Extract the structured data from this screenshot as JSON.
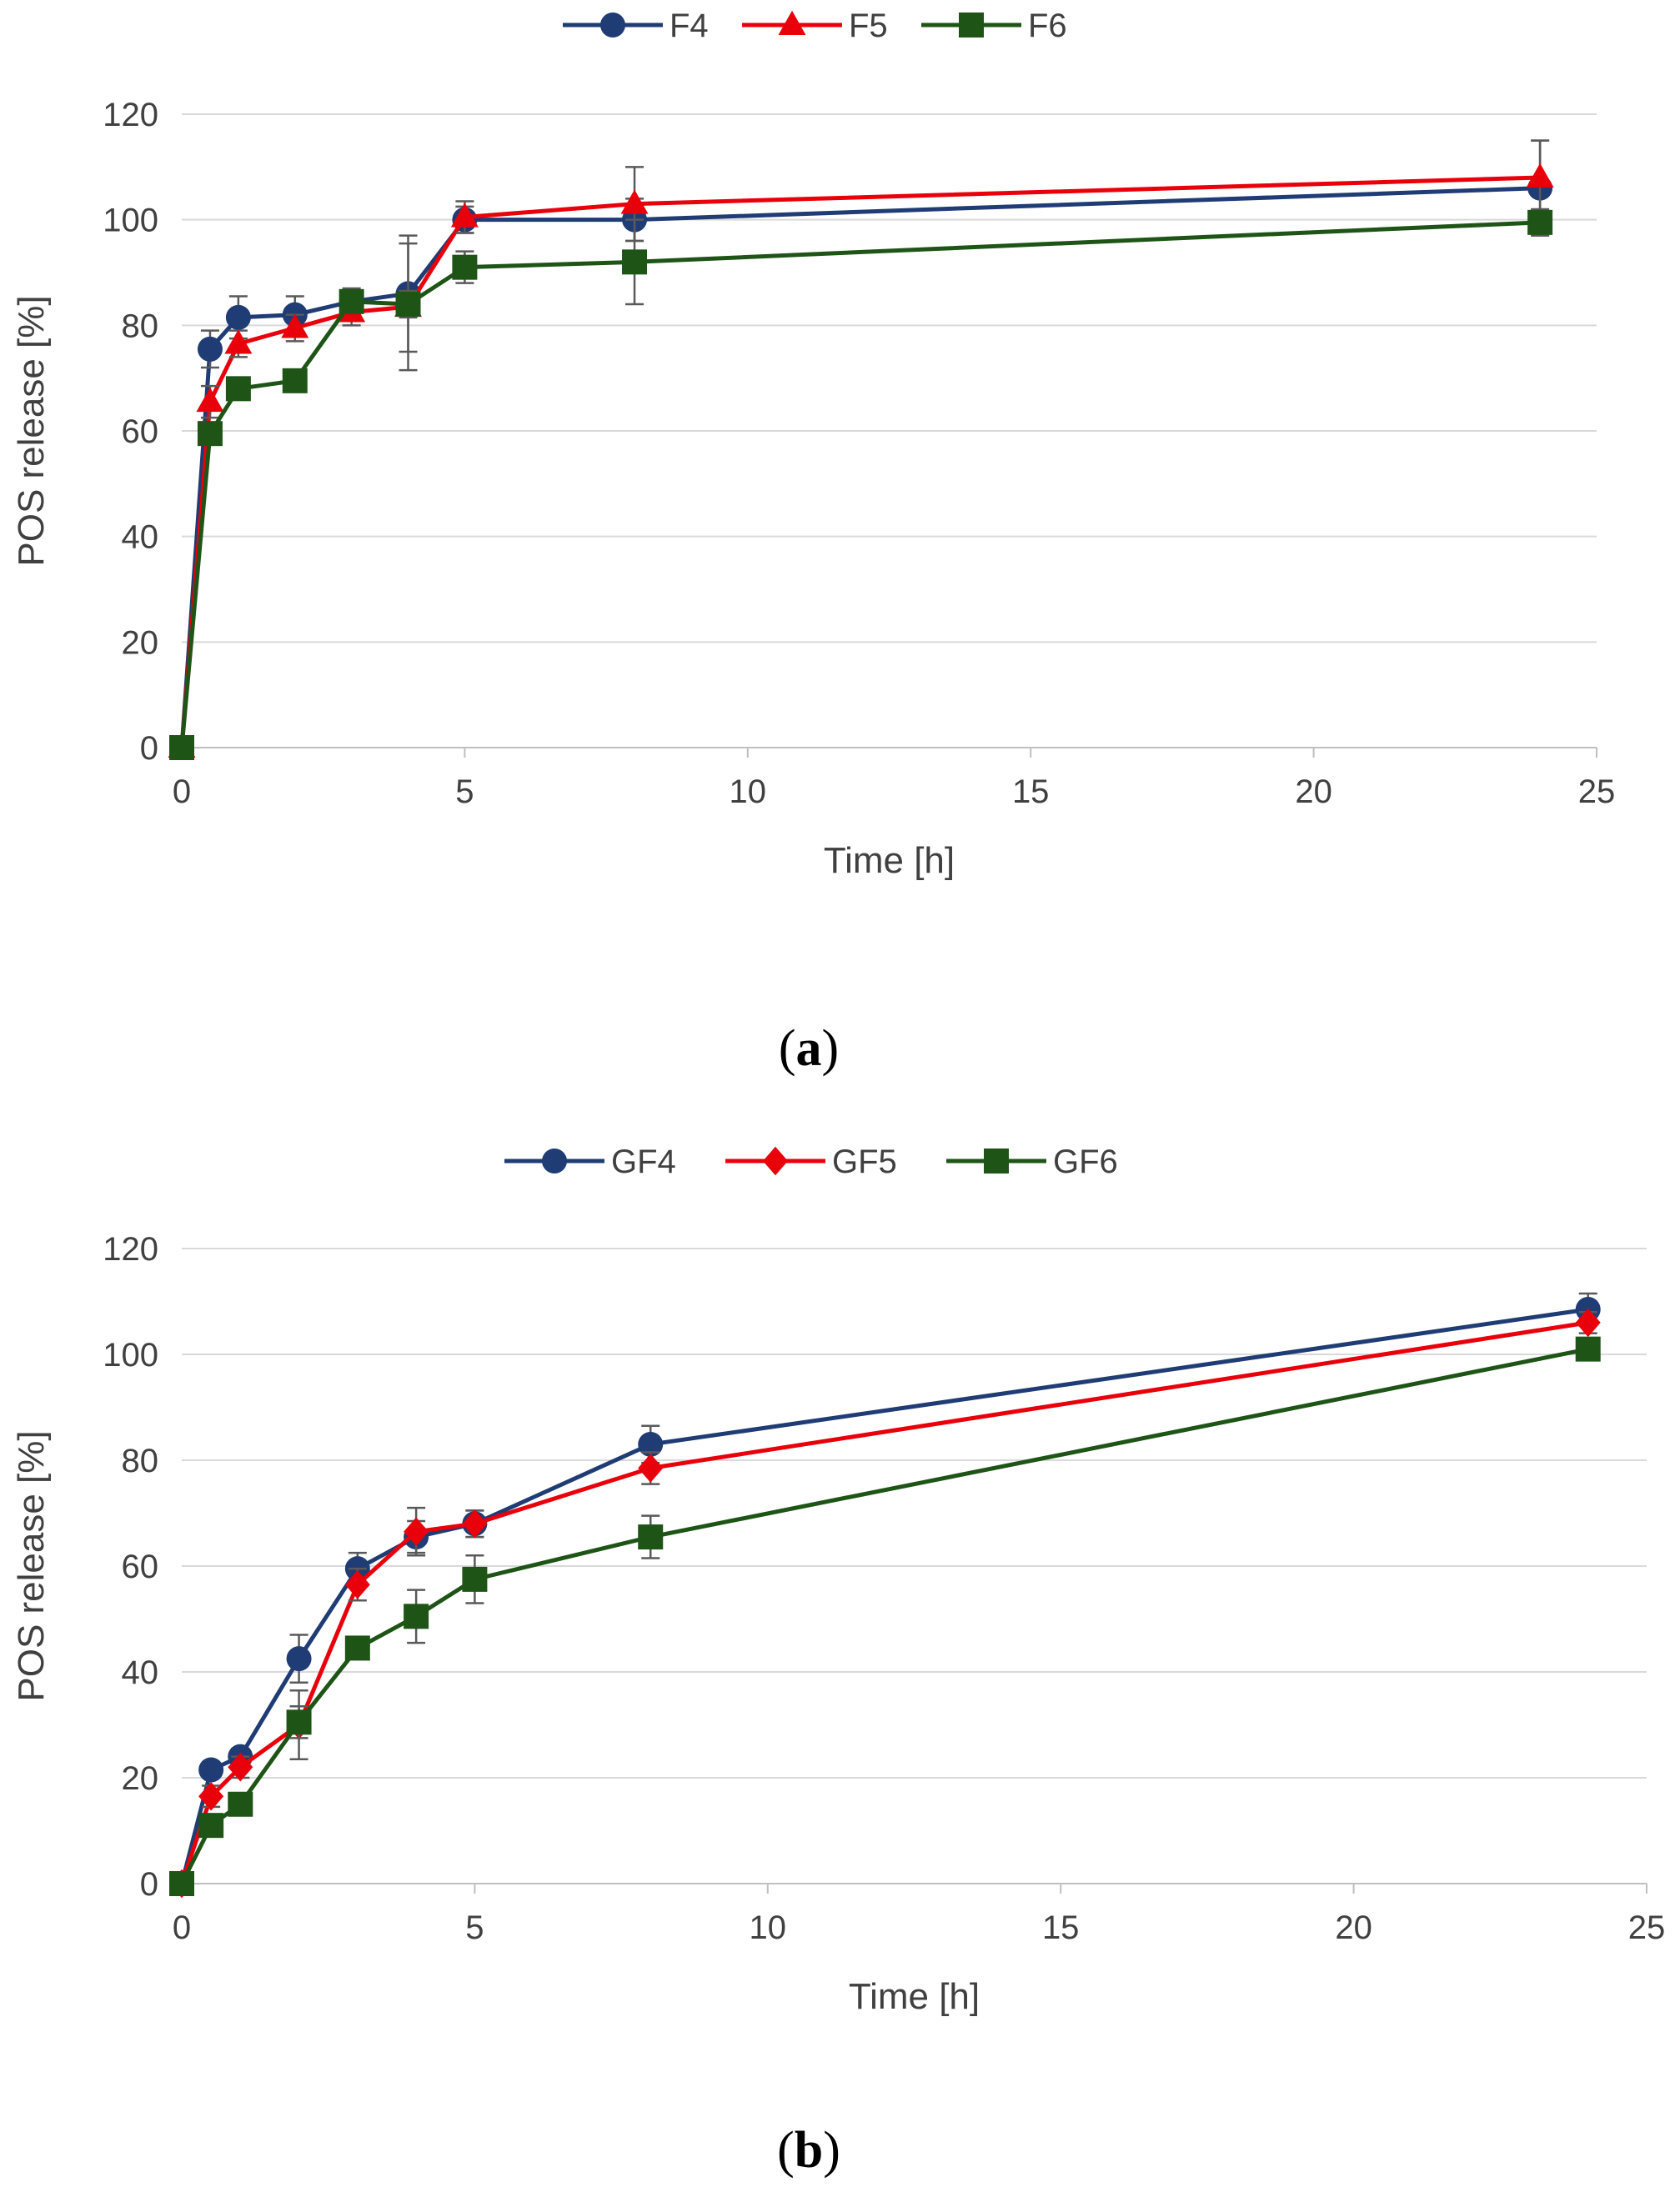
{
  "chart_data": [
    {
      "type": "line",
      "panel_label": "a",
      "title": "",
      "xlabel": "Time [h]",
      "ylabel": "POS release [%]",
      "xlim": [
        0,
        25
      ],
      "ylim": [
        0,
        120
      ],
      "xticks": [
        0,
        5,
        10,
        15,
        20,
        25
      ],
      "yticks": [
        0,
        20,
        40,
        60,
        80,
        100,
        120
      ],
      "grid": "horizontal",
      "legend_position": "top-center",
      "x": [
        0,
        0.5,
        1,
        2,
        3,
        4,
        5,
        8,
        24
      ],
      "series": [
        {
          "name": "F4",
          "marker": "circle",
          "color": "#1f3c74",
          "values": [
            0,
            75.5,
            81.5,
            82,
            84.5,
            86,
            100,
            100,
            106
          ],
          "errors": [
            0,
            3.5,
            4,
            3.5,
            2.5,
            11,
            2.5,
            4,
            9
          ]
        },
        {
          "name": "F5",
          "marker": "triangle",
          "color": "#e8000b",
          "values": [
            0,
            65.5,
            76.5,
            79.5,
            82.5,
            83.5,
            100.5,
            103,
            108
          ],
          "errors": [
            0,
            3,
            2.5,
            2.5,
            2.5,
            12,
            3,
            7,
            7
          ]
        },
        {
          "name": "F6",
          "marker": "square",
          "color": "#1e5517",
          "values": [
            0,
            59.5,
            68,
            69.5,
            84.5,
            84,
            91,
            92,
            99.5
          ],
          "errors": [
            0,
            2,
            2,
            2,
            2,
            2.5,
            3,
            8,
            2.5
          ]
        }
      ]
    },
    {
      "type": "line",
      "panel_label": "b",
      "title": "",
      "xlabel": "Time [h]",
      "ylabel": "POS release [%]",
      "xlim": [
        0,
        25
      ],
      "ylim": [
        0,
        120
      ],
      "xticks": [
        0,
        5,
        10,
        15,
        20,
        25
      ],
      "yticks": [
        0,
        20,
        40,
        60,
        80,
        100,
        120
      ],
      "grid": "horizontal",
      "legend_position": "top-center",
      "x": [
        0,
        0.5,
        1,
        2,
        3,
        4,
        5,
        8,
        24
      ],
      "series": [
        {
          "name": "GF4",
          "marker": "circle",
          "color": "#1f3c74",
          "values": [
            0,
            21.5,
            24,
            42.5,
            59.5,
            65.5,
            68,
            83,
            108.5
          ],
          "errors": [
            0,
            1.5,
            1.5,
            4.5,
            3,
            3,
            2.5,
            3.5,
            3
          ]
        },
        {
          "name": "GF5",
          "marker": "diamond",
          "color": "#e8000b",
          "values": [
            0,
            16.5,
            22,
            30,
            56.5,
            66.5,
            68,
            78.5,
            106
          ],
          "errors": [
            0,
            2,
            2,
            6.5,
            3,
            4.5,
            2.5,
            3,
            2
          ]
        },
        {
          "name": "GF6",
          "marker": "square",
          "color": "#1e5517",
          "values": [
            0,
            11,
            15,
            30.5,
            44.5,
            50.5,
            57.5,
            65.5,
            101
          ],
          "errors": [
            0,
            1.5,
            1.5,
            3,
            2,
            5,
            4.5,
            4,
            2
          ]
        }
      ]
    }
  ]
}
